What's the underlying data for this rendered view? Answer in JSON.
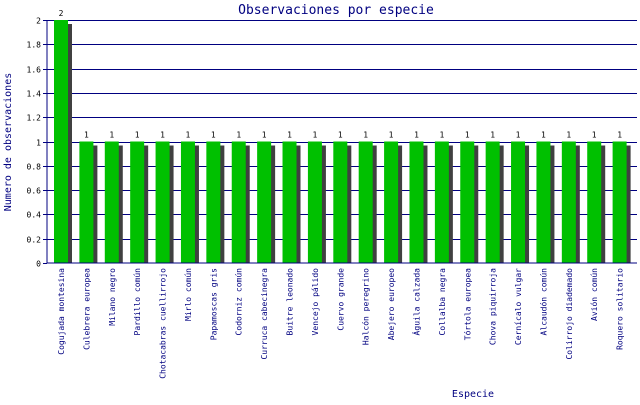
{
  "chart_data": {
    "type": "bar",
    "title": "Observaciones por especie",
    "xlabel": "Especie",
    "ylabel": "Numero de observaciones",
    "ylim": [
      0,
      2
    ],
    "yticks": [
      0,
      0.2,
      0.4,
      0.6,
      0.8,
      1,
      1.2,
      1.4,
      1.6,
      1.8,
      2
    ],
    "grid": true,
    "categories": [
      "Cogujada montesina",
      "Culebrera europea",
      "Milano negro",
      "Pardillo común",
      "Chotacabras cuellirrojo",
      "Mirlo común",
      "Papamoscas gris",
      "Codorniz común",
      "Curruca cabecinegra",
      "Buitre leonado",
      "Vencejo pálido",
      "Cuervo grande",
      "Halcón peregrino",
      "Abejero europeo",
      "Águila calzada",
      "Collalba negra",
      "Tórtola europea",
      "Chova piquirroja",
      "Cernícalo vulgar",
      "Alcaudón común",
      "Colirrojo diademado",
      "Avión común",
      "Roquero solitario"
    ],
    "values": [
      2,
      1,
      1,
      1,
      1,
      1,
      1,
      1,
      1,
      1,
      1,
      1,
      1,
      1,
      1,
      1,
      1,
      1,
      1,
      1,
      1,
      1,
      1
    ],
    "colors": {
      "bar": "#00c000",
      "shadow": "#404040",
      "grid": "#000080",
      "title": "#000080"
    }
  }
}
